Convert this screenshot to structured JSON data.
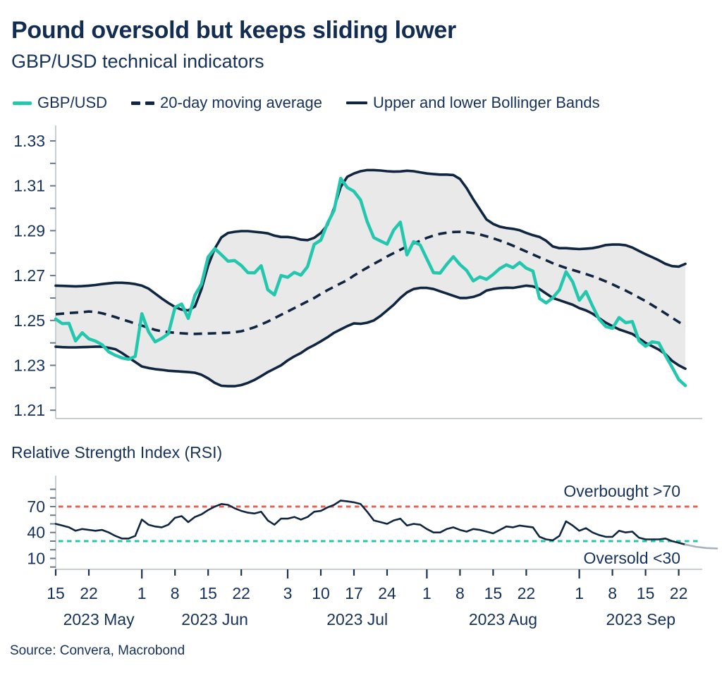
{
  "header": {
    "title": "Pound oversold but keeps sliding lower",
    "subtitle": "GBP/USD technical indicators"
  },
  "legend": [
    {
      "label": "GBP/USD",
      "swatch": "teal-line"
    },
    {
      "label": "20-day moving average",
      "swatch": "navy-dashes"
    },
    {
      "label": "Upper and lower Bollinger Bands",
      "swatch": "navy-line"
    }
  ],
  "source": "Source: Convera, Macrobond",
  "colors": {
    "navy_line": "#0f2540",
    "navy_text": "#16325a",
    "teal": "#23c7ae",
    "red": "#ee5c4d",
    "band_fill": "#e9e9e9",
    "axis_gray": "#c9ced3",
    "tick_gray": "#6b7a89",
    "rsi_tail_gray": "#a9b3bf"
  },
  "x_axis": {
    "dates": [
      "05-15",
      "05-16",
      "05-17",
      "05-18",
      "05-19",
      "05-22",
      "05-23",
      "05-24",
      "05-25",
      "05-26",
      "05-29",
      "05-30",
      "05-31",
      "06-01",
      "06-02",
      "06-05",
      "06-06",
      "06-07",
      "06-08",
      "06-09",
      "06-12",
      "06-13",
      "06-14",
      "06-15",
      "06-16",
      "06-19",
      "06-20",
      "06-21",
      "06-22",
      "06-23",
      "06-26",
      "06-27",
      "06-28",
      "06-29",
      "06-30",
      "07-03",
      "07-04",
      "07-05",
      "07-06",
      "07-07",
      "07-10",
      "07-11",
      "07-12",
      "07-13",
      "07-14",
      "07-17",
      "07-18",
      "07-19",
      "07-20",
      "07-21",
      "07-24",
      "07-25",
      "07-26",
      "07-27",
      "07-28",
      "07-31",
      "08-01",
      "08-02",
      "08-03",
      "08-04",
      "08-07",
      "08-08",
      "08-09",
      "08-10",
      "08-11",
      "08-14",
      "08-15",
      "08-16",
      "08-17",
      "08-18",
      "08-21",
      "08-22",
      "08-23",
      "08-24",
      "08-25",
      "08-28",
      "08-29",
      "08-30",
      "08-31",
      "09-01",
      "09-04",
      "09-05",
      "09-06",
      "09-07",
      "09-08",
      "09-11",
      "09-12",
      "09-13",
      "09-14",
      "09-15",
      "09-18",
      "09-19",
      "09-20",
      "09-21",
      "09-22",
      "09-25"
    ],
    "x_ticks": [
      {
        "i": 0,
        "label": "15"
      },
      {
        "i": 5,
        "label": "22"
      },
      {
        "i": 13,
        "label": "1",
        "month_start": true
      },
      {
        "i": 18,
        "label": "8"
      },
      {
        "i": 23,
        "label": "15"
      },
      {
        "i": 28,
        "label": "22"
      },
      {
        "i": 35,
        "label": "3",
        "month_start": true
      },
      {
        "i": 40,
        "label": "10"
      },
      {
        "i": 45,
        "label": "17"
      },
      {
        "i": 50,
        "label": "24"
      },
      {
        "i": 56,
        "label": "1",
        "month_start": true
      },
      {
        "i": 61,
        "label": "8"
      },
      {
        "i": 66,
        "label": "15"
      },
      {
        "i": 71,
        "label": "22"
      },
      {
        "i": 79,
        "label": "1",
        "month_start": true
      },
      {
        "i": 84,
        "label": "8"
      },
      {
        "i": 89,
        "label": "15"
      },
      {
        "i": 94,
        "label": "22"
      }
    ],
    "month_labels": [
      {
        "label": "2023 May",
        "i0": 0,
        "i1": 13
      },
      {
        "label": "2023 Jun",
        "i0": 13,
        "i1": 35
      },
      {
        "label": "2023 Jul",
        "i0": 35,
        "i1": 56
      },
      {
        "label": "2023 Aug",
        "i0": 56,
        "i1": 79
      },
      {
        "label": "2023 Sep",
        "i0": 79,
        "i1": 96
      }
    ]
  },
  "chart_data": [
    {
      "type": "line",
      "title": "GBP/USD technical indicators",
      "ylim": [
        1.2063,
        1.3369
      ],
      "y_ticks_minor": [
        1.21,
        1.22,
        1.23,
        1.24,
        1.25,
        1.26,
        1.27,
        1.28,
        1.29,
        1.3,
        1.31,
        1.32,
        1.33
      ],
      "y_tick_labels": [
        "1.21",
        "1.23",
        "1.25",
        "1.27",
        "1.29",
        "1.31",
        "1.33"
      ],
      "y_tick_label_values": [
        1.21,
        1.23,
        1.25,
        1.27,
        1.29,
        1.31,
        1.33
      ],
      "band_fill_between": [
        "Upper Bollinger Band",
        "Lower Bollinger Band"
      ],
      "series": [
        {
          "name": "GBP/USD",
          "style": "solid",
          "color_key": "teal",
          "width": 4.5,
          "values": [
            1.2506,
            1.2486,
            1.2487,
            1.2409,
            1.2445,
            1.2418,
            1.2408,
            1.2392,
            1.236,
            1.2345,
            1.2333,
            1.2327,
            1.234,
            1.253,
            1.245,
            1.2405,
            1.242,
            1.2441,
            1.2558,
            1.2573,
            1.2509,
            1.2612,
            1.2662,
            1.2783,
            1.282,
            1.2793,
            1.2764,
            1.2767,
            1.2745,
            1.2713,
            1.2712,
            1.2744,
            1.2637,
            1.2614,
            1.27,
            1.2692,
            1.2714,
            1.2702,
            1.274,
            1.2839,
            1.2858,
            1.2932,
            1.299,
            1.3133,
            1.3092,
            1.3075,
            1.3037,
            1.294,
            1.2869,
            1.2854,
            1.284,
            1.2903,
            1.2938,
            1.2792,
            1.2851,
            1.2836,
            1.2774,
            1.2713,
            1.2711,
            1.275,
            1.2784,
            1.2749,
            1.2723,
            1.2676,
            1.2694,
            1.2683,
            1.2705,
            1.2731,
            1.2748,
            1.2735,
            1.2758,
            1.2733,
            1.272,
            1.2598,
            1.2578,
            1.2601,
            1.2636,
            1.2717,
            1.2672,
            1.259,
            1.2629,
            1.2564,
            1.2505,
            1.2473,
            1.2465,
            1.2513,
            1.249,
            1.2495,
            1.241,
            1.2385,
            1.2405,
            1.24,
            1.2344,
            1.2292,
            1.2237,
            1.221
          ]
        },
        {
          "name": "20-day moving average",
          "style": "dashed",
          "color_key": "navy_line",
          "width": 3.6,
          "values": [
            1.2528,
            1.253,
            1.2533,
            1.2535,
            1.2537,
            1.254,
            1.2538,
            1.2532,
            1.2524,
            1.2515,
            1.2505,
            1.2496,
            1.2486,
            1.2477,
            1.2468,
            1.2458,
            1.2452,
            1.2448,
            1.2445,
            1.2443,
            1.2441,
            1.244,
            1.2441,
            1.2442,
            1.2443,
            1.2444,
            1.2445,
            1.2448,
            1.2452,
            1.246,
            1.247,
            1.2482,
            1.2495,
            1.251,
            1.2525,
            1.254,
            1.2555,
            1.257,
            1.2585,
            1.26,
            1.2618,
            1.2635,
            1.265,
            1.2665,
            1.268,
            1.27,
            1.2718,
            1.2735,
            1.2752,
            1.2768,
            1.2785,
            1.28,
            1.2815,
            1.283,
            1.2843,
            1.2855,
            1.2868,
            1.2878,
            1.2886,
            1.2891,
            1.2894,
            1.2895,
            1.2893,
            1.2889,
            1.2883,
            1.2875,
            1.2866,
            1.2856,
            1.2845,
            1.2833,
            1.282,
            1.2807,
            1.2794,
            1.2781,
            1.2768,
            1.2755,
            1.2744,
            1.2734,
            1.2725,
            1.2716,
            1.2707,
            1.2697,
            1.2686,
            1.2674,
            1.2661,
            1.2647,
            1.2633,
            1.2618,
            1.2602,
            1.2586,
            1.2568,
            1.255,
            1.2531,
            1.2512,
            1.2493,
            1.2475
          ]
        },
        {
          "name": "Upper Bollinger Band",
          "style": "solid",
          "color_key": "navy_line",
          "width": 3.6,
          "values": [
            1.2655,
            1.2654,
            1.2653,
            1.2652,
            1.2653,
            1.2655,
            1.2658,
            1.2662,
            1.2665,
            1.2668,
            1.2668,
            1.2666,
            1.2662,
            1.2655,
            1.2642,
            1.262,
            1.2598,
            1.2578,
            1.256,
            1.2548,
            1.2545,
            1.2562,
            1.264,
            1.2745,
            1.282,
            1.287,
            1.289,
            1.2895,
            1.2898,
            1.2898,
            1.2895,
            1.2892,
            1.2888,
            1.2878,
            1.2872,
            1.2872,
            1.2868,
            1.286,
            1.2858,
            1.2868,
            1.289,
            1.2925,
            1.3,
            1.3095,
            1.314,
            1.3155,
            1.3165,
            1.317,
            1.317,
            1.3168,
            1.3165,
            1.3163,
            1.3164,
            1.3167,
            1.3165,
            1.316,
            1.3155,
            1.3152,
            1.315,
            1.315,
            1.3148,
            1.313,
            1.309,
            1.304,
            1.2995,
            1.295,
            1.293,
            1.2918,
            1.2912,
            1.2908,
            1.2902,
            1.289,
            1.288,
            1.2872,
            1.2855,
            1.283,
            1.2822,
            1.2822,
            1.282,
            1.2818,
            1.282,
            1.2822,
            1.2828,
            1.2836,
            1.2838,
            1.2838,
            1.2835,
            1.2825,
            1.281,
            1.2795,
            1.2782,
            1.2768,
            1.2752,
            1.2742,
            1.274,
            1.2752
          ]
        },
        {
          "name": "Lower Bollinger Band",
          "style": "solid",
          "color_key": "navy_line",
          "width": 3.6,
          "values": [
            1.2383,
            1.2381,
            1.238,
            1.238,
            1.2381,
            1.2382,
            1.2383,
            1.2383,
            1.2378,
            1.2372,
            1.2355,
            1.2335,
            1.2315,
            1.2295,
            1.2288,
            1.2283,
            1.228,
            1.2276,
            1.2274,
            1.2272,
            1.227,
            1.2267,
            1.2258,
            1.2242,
            1.2222,
            1.2209,
            1.2207,
            1.2207,
            1.2212,
            1.2222,
            1.2235,
            1.2252,
            1.227,
            1.2285,
            1.23,
            1.2322,
            1.234,
            1.2355,
            1.2375,
            1.239,
            1.2407,
            1.2425,
            1.2445,
            1.246,
            1.2475,
            1.2487,
            1.2485,
            1.249,
            1.25,
            1.252,
            1.2545,
            1.257,
            1.26,
            1.2625,
            1.264,
            1.2645,
            1.2645,
            1.264,
            1.263,
            1.262,
            1.261,
            1.26,
            1.26,
            1.2605,
            1.2615,
            1.2633,
            1.264,
            1.2644,
            1.2646,
            1.2645,
            1.265,
            1.2655,
            1.2652,
            1.264,
            1.262,
            1.26,
            1.259,
            1.258,
            1.257,
            1.2555,
            1.2545,
            1.253,
            1.251,
            1.249,
            1.2475,
            1.246,
            1.245,
            1.244,
            1.242,
            1.24,
            1.2385,
            1.237,
            1.235,
            1.232,
            1.23,
            1.2285
          ]
        }
      ]
    },
    {
      "type": "line",
      "title": "Relative Strength Index (RSI)",
      "ylim": [
        -2.65,
        105.9
      ],
      "y_ticks_minor": [
        0,
        10,
        20,
        30,
        40,
        50,
        60,
        70,
        80,
        90
      ],
      "y_tick_labels": [
        "10",
        "40",
        "70"
      ],
      "y_tick_label_values": [
        10,
        40,
        70
      ],
      "hlines": [
        {
          "y": 70,
          "color_key": "red",
          "label": "Overbought >70"
        },
        {
          "y": 30,
          "color_key": "teal",
          "label": "Oversold <30"
        }
      ],
      "series": [
        {
          "name": "RSI",
          "style": "solid",
          "color_key": "navy_line",
          "width": 2.6,
          "values": [
            50,
            48,
            46,
            42,
            44,
            43,
            42,
            43,
            40,
            36,
            33,
            33,
            36,
            55,
            49,
            47,
            46,
            49,
            57,
            59,
            52,
            58,
            61,
            66,
            70,
            73,
            72,
            68,
            65,
            63,
            62,
            64,
            54,
            49,
            56,
            56,
            58,
            55,
            58,
            64,
            65,
            69,
            72,
            77,
            76,
            75,
            73,
            64,
            54,
            52,
            50,
            54,
            56,
            48,
            50,
            49,
            44,
            40,
            40,
            44,
            46,
            43,
            41,
            44,
            43,
            41,
            39,
            43,
            47,
            46,
            48,
            47,
            46,
            35,
            32,
            31,
            36,
            53,
            48,
            42,
            45,
            40,
            37,
            35,
            35,
            42,
            40,
            41,
            34,
            32,
            32,
            32,
            33,
            30,
            28,
            26
          ]
        }
      ],
      "gray_tail": [
        26,
        23.5,
        22,
        21.5
      ]
    }
  ]
}
